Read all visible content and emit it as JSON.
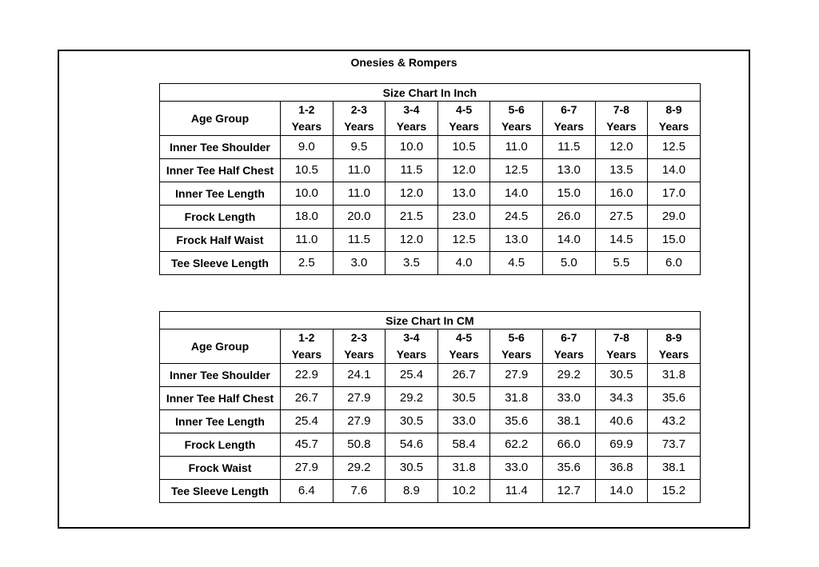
{
  "title": "Onesies & Rompers",
  "age_header": "Age Group",
  "ages": [
    {
      "range": "1-2",
      "unit": "Years"
    },
    {
      "range": "2-3",
      "unit": "Years"
    },
    {
      "range": "3-4",
      "unit": "Years"
    },
    {
      "range": "4-5",
      "unit": "Years"
    },
    {
      "range": "5-6",
      "unit": "Years"
    },
    {
      "range": "6-7",
      "unit": "Years"
    },
    {
      "range": "7-8",
      "unit": "Years"
    },
    {
      "range": "8-9",
      "unit": "Years"
    }
  ],
  "tables": [
    {
      "caption": "Size Chart In Inch",
      "rows": [
        {
          "label": "Inner Tee Shoulder",
          "values": [
            "9.0",
            "9.5",
            "10.0",
            "10.5",
            "11.0",
            "11.5",
            "12.0",
            "12.5"
          ]
        },
        {
          "label": "Inner Tee Half Chest",
          "values": [
            "10.5",
            "11.0",
            "11.5",
            "12.0",
            "12.5",
            "13.0",
            "13.5",
            "14.0"
          ]
        },
        {
          "label": "Inner Tee Length",
          "values": [
            "10.0",
            "11.0",
            "12.0",
            "13.0",
            "14.0",
            "15.0",
            "16.0",
            "17.0"
          ]
        },
        {
          "label": "Frock Length",
          "values": [
            "18.0",
            "20.0",
            "21.5",
            "23.0",
            "24.5",
            "26.0",
            "27.5",
            "29.0"
          ]
        },
        {
          "label": "Frock Half Waist",
          "values": [
            "11.0",
            "11.5",
            "12.0",
            "12.5",
            "13.0",
            "14.0",
            "14.5",
            "15.0"
          ]
        },
        {
          "label": "Tee Sleeve Length",
          "values": [
            "2.5",
            "3.0",
            "3.5",
            "4.0",
            "4.5",
            "5.0",
            "5.5",
            "6.0"
          ]
        }
      ]
    },
    {
      "caption": "Size Chart In CM",
      "rows": [
        {
          "label": "Inner Tee Shoulder",
          "values": [
            "22.9",
            "24.1",
            "25.4",
            "26.7",
            "27.9",
            "29.2",
            "30.5",
            "31.8"
          ]
        },
        {
          "label": "Inner Tee Half Chest",
          "values": [
            "26.7",
            "27.9",
            "29.2",
            "30.5",
            "31.8",
            "33.0",
            "34.3",
            "35.6"
          ]
        },
        {
          "label": "Inner Tee Length",
          "values": [
            "25.4",
            "27.9",
            "30.5",
            "33.0",
            "35.6",
            "38.1",
            "40.6",
            "43.2"
          ]
        },
        {
          "label": "Frock Length",
          "values": [
            "45.7",
            "50.8",
            "54.6",
            "58.4",
            "62.2",
            "66.0",
            "69.9",
            "73.7"
          ]
        },
        {
          "label": "Frock Waist",
          "values": [
            "27.9",
            "29.2",
            "30.5",
            "31.8",
            "33.0",
            "35.6",
            "36.8",
            "38.1"
          ]
        },
        {
          "label": "Tee Sleeve Length",
          "values": [
            "6.4",
            "7.6",
            "8.9",
            "10.2",
            "11.4",
            "12.7",
            "14.0",
            "15.2"
          ]
        }
      ]
    }
  ]
}
